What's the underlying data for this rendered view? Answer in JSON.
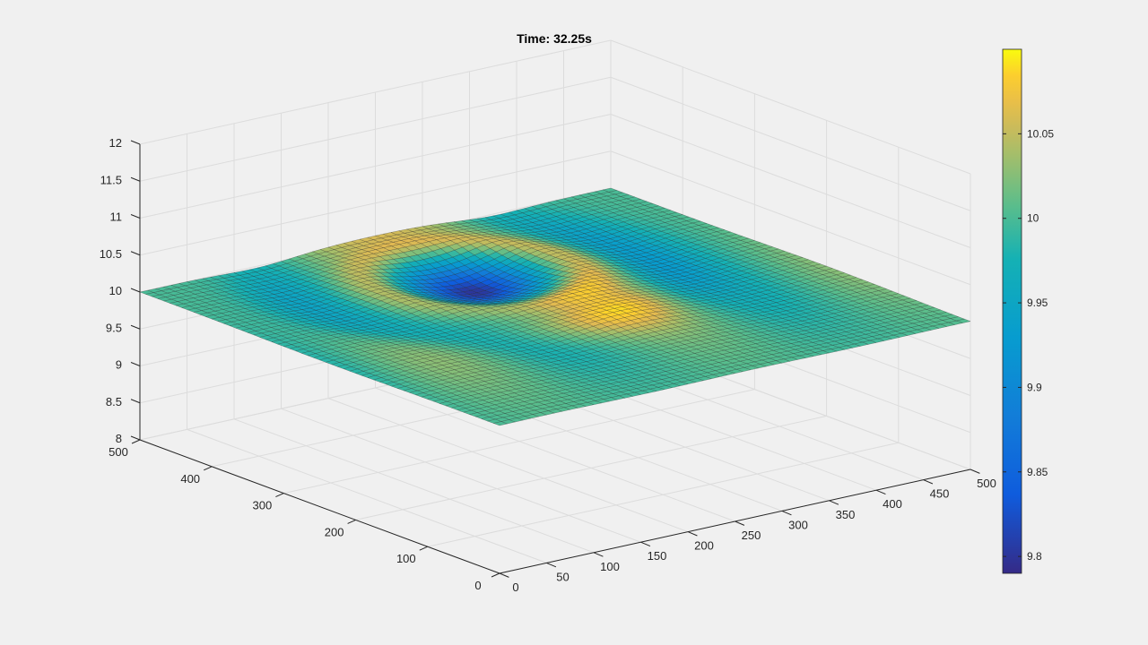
{
  "chart_data": {
    "type": "surface",
    "title": "Time: 32.25s",
    "xlabel": "",
    "ylabel": "",
    "zlabel": "",
    "x_ticks": [
      0,
      50,
      100,
      150,
      200,
      250,
      300,
      350,
      400,
      450,
      500
    ],
    "x_tick_labels": [
      "0",
      "50",
      "100",
      "150",
      "200",
      "250",
      "300",
      "350",
      "400",
      "450",
      "500"
    ],
    "y_ticks": [
      0,
      100,
      200,
      300,
      400,
      500
    ],
    "y_tick_labels": [
      "0",
      "100",
      "200",
      "300",
      "400",
      "500"
    ],
    "z_ticks": [
      8,
      8.5,
      9,
      9.5,
      10,
      10.5,
      11,
      11.5,
      12
    ],
    "z_tick_labels": [
      "8",
      "8.5",
      "9",
      "9.5",
      "10",
      "10.5",
      "11",
      "11.5",
      "12"
    ],
    "xlim": [
      0,
      500
    ],
    "ylim": [
      0,
      500
    ],
    "zlim": [
      8,
      12
    ],
    "grid": true,
    "colormap": "parula",
    "colorbar": {
      "location": "right",
      "clim": [
        9.79,
        10.1
      ],
      "ticks": [
        9.8,
        9.85,
        9.9,
        9.95,
        10,
        10.05
      ],
      "tick_labels": [
        "9.8",
        "9.85",
        "9.9",
        "9.95",
        "10",
        "10.05"
      ]
    },
    "surface": {
      "grid_n": 60,
      "base_height": 10.0,
      "peak_height": 10.09,
      "trough_height": 9.79,
      "description": "Wave pattern on a plane at height 10 with a central depression near (250, 350)"
    }
  }
}
